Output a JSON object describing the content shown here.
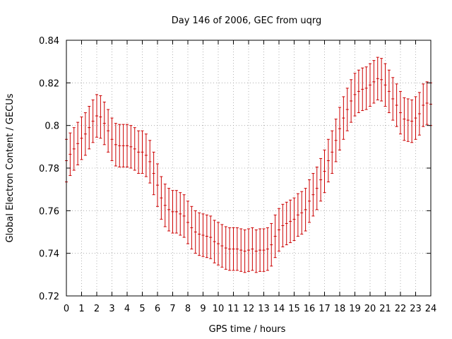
{
  "chart_data": {
    "type": "scatter",
    "title": "Day 146 of 2006, GEC from uqrg",
    "xlabel": "GPS time / hours",
    "ylabel": "Global Electron Content / GECUs",
    "xlim": [
      0,
      24
    ],
    "ylim": [
      0.72,
      0.84
    ],
    "grid": true,
    "x_ticks": [
      0,
      1,
      2,
      3,
      4,
      5,
      6,
      7,
      8,
      9,
      10,
      11,
      12,
      13,
      14,
      15,
      16,
      17,
      18,
      19,
      20,
      21,
      22,
      23,
      24
    ],
    "y_ticks": [
      0.72,
      0.74,
      0.76,
      0.78,
      0.8,
      0.82,
      0.84
    ],
    "y_tick_labels": [
      "0.72",
      "0.74",
      "0.76",
      "0.78",
      "0.8",
      "0.82",
      "0.84"
    ],
    "error": 0.01,
    "series": [
      {
        "name": "GEC",
        "color": "#cc0000",
        "x": [
          0.0,
          0.25,
          0.5,
          0.75,
          1.0,
          1.25,
          1.5,
          1.75,
          2.0,
          2.25,
          2.5,
          2.75,
          3.0,
          3.25,
          3.5,
          3.75,
          4.0,
          4.25,
          4.5,
          4.75,
          5.0,
          5.25,
          5.5,
          5.75,
          6.0,
          6.25,
          6.5,
          6.75,
          7.0,
          7.25,
          7.5,
          7.75,
          8.0,
          8.25,
          8.5,
          8.75,
          9.0,
          9.25,
          9.5,
          9.75,
          10.0,
          10.25,
          10.5,
          10.75,
          11.0,
          11.25,
          11.5,
          11.75,
          12.0,
          12.25,
          12.5,
          12.75,
          13.0,
          13.25,
          13.5,
          13.75,
          14.0,
          14.25,
          14.5,
          14.75,
          15.0,
          15.25,
          15.5,
          15.75,
          16.0,
          16.25,
          16.5,
          16.75,
          17.0,
          17.25,
          17.5,
          17.75,
          18.0,
          18.25,
          18.5,
          18.75,
          19.0,
          19.25,
          19.5,
          19.75,
          20.0,
          20.25,
          20.5,
          20.75,
          21.0,
          21.25,
          21.5,
          21.75,
          22.0,
          22.25,
          22.5,
          22.75,
          23.0,
          23.25,
          23.5,
          23.75,
          24.0
        ],
        "y": [
          0.7835,
          0.7865,
          0.789,
          0.7915,
          0.794,
          0.796,
          0.799,
          0.802,
          0.8045,
          0.804,
          0.801,
          0.7975,
          0.7935,
          0.791,
          0.7905,
          0.7905,
          0.7905,
          0.79,
          0.789,
          0.7875,
          0.7875,
          0.786,
          0.783,
          0.7775,
          0.772,
          0.766,
          0.7625,
          0.7605,
          0.7595,
          0.7595,
          0.7585,
          0.7575,
          0.7545,
          0.752,
          0.75,
          0.749,
          0.7485,
          0.748,
          0.7475,
          0.7455,
          0.7445,
          0.7435,
          0.7425,
          0.742,
          0.742,
          0.742,
          0.7415,
          0.741,
          0.7415,
          0.742,
          0.741,
          0.7415,
          0.7415,
          0.742,
          0.744,
          0.748,
          0.751,
          0.753,
          0.754,
          0.755,
          0.756,
          0.758,
          0.759,
          0.7605,
          0.7645,
          0.7675,
          0.7705,
          0.7745,
          0.7785,
          0.7835,
          0.7875,
          0.793,
          0.7985,
          0.8035,
          0.8075,
          0.8115,
          0.8145,
          0.816,
          0.817,
          0.8175,
          0.819,
          0.8205,
          0.822,
          0.8215,
          0.819,
          0.816,
          0.8125,
          0.8095,
          0.806,
          0.803,
          0.8025,
          0.802,
          0.8035,
          0.8055,
          0.8095,
          0.8105,
          0.81
        ]
      }
    ]
  }
}
